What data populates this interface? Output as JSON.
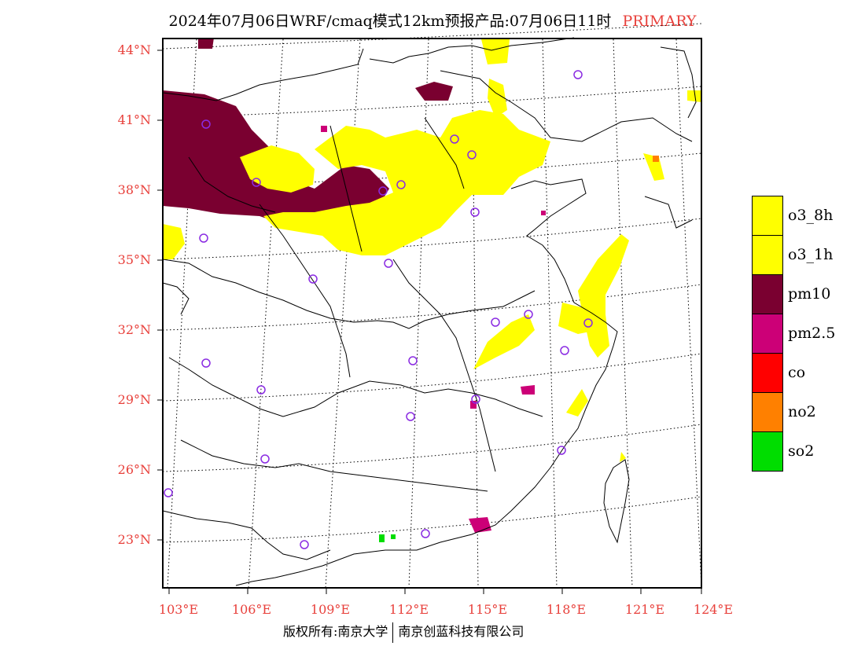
{
  "title": "2024年07月06日WRF/cmaq模式12km预报产品:07月06日11时",
  "title_tag": "PRIMARY",
  "lat_labels": [
    "44°N",
    "41°N",
    "38°N",
    "35°N",
    "32°N",
    "29°N",
    "26°N",
    "23°N"
  ],
  "lon_labels": [
    "103°E",
    "106°E",
    "109°E",
    "112°E",
    "115°E",
    "118°E",
    "121°E",
    "124°E"
  ],
  "legend": [
    {
      "label": "o3_8h",
      "color": "#ffff00"
    },
    {
      "label": "o3_1h",
      "color": "#ffff00"
    },
    {
      "label": "pm10",
      "color": "#7a0030"
    },
    {
      "label": "pm2.5",
      "color": "#cc0077"
    },
    {
      "label": "co",
      "color": "#ff0000"
    },
    {
      "label": "no2",
      "color": "#ff8000"
    },
    {
      "label": "so2",
      "color": "#00dd00"
    }
  ],
  "footer": {
    "left": "版权所有:南京大学",
    "right": "南京创蓝科技有限公司"
  },
  "colors": {
    "axis_label": "#e8413c",
    "station_marker": "#8a2be2"
  }
}
